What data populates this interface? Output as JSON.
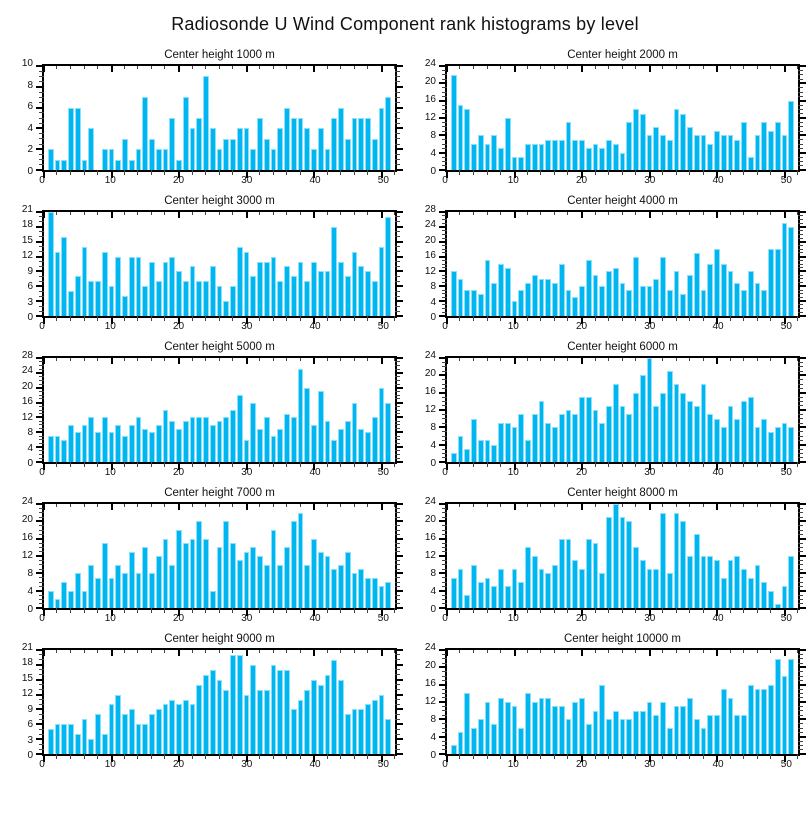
{
  "page": {
    "title": "Radiosonde U Wind Component rank histograms by level"
  },
  "style": {
    "bar_fill": "#00b6f0",
    "bar_edge": "#8ce0fa",
    "axis_color": "#000000"
  },
  "chart_data": [
    {
      "type": "bar",
      "title": "Center height 1000 m",
      "xlabel": "",
      "ylabel": "",
      "xlim": [
        0,
        52
      ],
      "xticks": [
        0,
        10,
        20,
        30,
        40,
        50
      ],
      "x_minor_step": 2,
      "ylim": [
        0,
        10
      ],
      "yticks": [
        0,
        2,
        4,
        6,
        8,
        10
      ],
      "y_minor_step": 0.5,
      "grid": false,
      "legend": "none",
      "values": [
        2,
        1,
        1,
        6,
        6,
        1,
        4,
        0,
        2,
        2,
        1,
        3,
        1,
        2,
        7,
        3,
        2,
        2,
        5,
        1,
        7,
        4,
        5,
        9,
        4,
        2,
        3,
        3,
        4,
        4,
        2,
        5,
        3,
        2,
        4,
        6,
        5,
        5,
        4,
        2,
        4,
        2,
        5,
        6,
        3,
        5,
        5,
        5,
        3,
        6,
        7
      ]
    },
    {
      "type": "bar",
      "title": "Center height 2000 m",
      "xlabel": "",
      "ylabel": "",
      "xlim": [
        0,
        52
      ],
      "xticks": [
        0,
        10,
        20,
        30,
        40,
        50
      ],
      "x_minor_step": 2,
      "ylim": [
        0,
        24
      ],
      "yticks": [
        0,
        4,
        8,
        12,
        16,
        20,
        24
      ],
      "y_minor_step": 1,
      "grid": false,
      "legend": "none",
      "values": [
        22,
        15,
        14,
        6,
        8,
        6,
        8,
        5,
        12,
        3,
        3,
        6,
        6,
        6,
        7,
        7,
        7,
        11,
        7,
        7,
        5,
        6,
        5,
        7,
        6,
        4,
        11,
        14,
        13,
        8,
        10,
        8,
        7,
        14,
        13,
        10,
        8,
        8,
        6,
        9,
        8,
        8,
        7,
        11,
        3,
        8,
        11,
        9,
        11,
        8,
        16
      ]
    },
    {
      "type": "bar",
      "title": "Center height 3000 m",
      "xlabel": "",
      "ylabel": "",
      "xlim": [
        0,
        52
      ],
      "xticks": [
        0,
        10,
        20,
        30,
        40,
        50
      ],
      "x_minor_step": 2,
      "ylim": [
        0,
        21
      ],
      "yticks": [
        0,
        3,
        6,
        9,
        12,
        15,
        18,
        21
      ],
      "y_minor_step": 1,
      "grid": false,
      "legend": "none",
      "values": [
        21,
        13,
        16,
        5,
        8,
        14,
        7,
        7,
        13,
        6,
        12,
        4,
        12,
        12,
        6,
        11,
        7,
        11,
        12,
        9,
        7,
        10,
        7,
        7,
        10,
        6,
        3,
        6,
        14,
        13,
        8,
        11,
        11,
        12,
        7,
        10,
        8,
        11,
        7,
        11,
        9,
        9,
        18,
        11,
        8,
        13,
        10,
        9,
        7,
        14,
        20
      ]
    },
    {
      "type": "bar",
      "title": "Center height 4000 m",
      "xlabel": "",
      "ylabel": "",
      "xlim": [
        0,
        52
      ],
      "xticks": [
        0,
        10,
        20,
        30,
        40,
        50
      ],
      "x_minor_step": 2,
      "ylim": [
        0,
        28
      ],
      "yticks": [
        0,
        4,
        8,
        12,
        16,
        20,
        24,
        28
      ],
      "y_minor_step": 1,
      "grid": false,
      "legend": "none",
      "values": [
        12,
        10,
        7,
        7,
        6,
        15,
        9,
        14,
        13,
        4,
        7,
        9,
        11,
        10,
        10,
        9,
        14,
        7,
        5,
        8,
        15,
        11,
        8,
        12,
        13,
        9,
        7,
        16,
        8,
        8,
        10,
        16,
        7,
        12,
        6,
        11,
        17,
        7,
        14,
        18,
        14,
        12,
        9,
        7,
        12,
        9,
        7,
        18,
        18,
        25,
        24
      ]
    },
    {
      "type": "bar",
      "title": "Center height 5000 m",
      "xlabel": "",
      "ylabel": "",
      "xlim": [
        0,
        52
      ],
      "xticks": [
        0,
        10,
        20,
        30,
        40,
        50
      ],
      "x_minor_step": 2,
      "ylim": [
        0,
        28
      ],
      "yticks": [
        0,
        4,
        8,
        12,
        16,
        20,
        24,
        28
      ],
      "y_minor_step": 1,
      "grid": false,
      "legend": "none",
      "values": [
        7,
        7,
        6,
        10,
        8,
        10,
        12,
        8,
        12,
        8,
        10,
        7,
        10,
        12,
        9,
        8,
        10,
        14,
        11,
        9,
        11,
        12,
        12,
        12,
        10,
        11,
        12,
        14,
        18,
        6,
        16,
        9,
        12,
        7,
        9,
        13,
        12,
        25,
        20,
        10,
        19,
        11,
        6,
        9,
        11,
        16,
        9,
        8,
        12,
        20,
        16
      ]
    },
    {
      "type": "bar",
      "title": "Center height 6000 m",
      "xlabel": "",
      "ylabel": "",
      "xlim": [
        0,
        52
      ],
      "xticks": [
        0,
        10,
        20,
        30,
        40,
        50
      ],
      "x_minor_step": 2,
      "ylim": [
        0,
        24
      ],
      "yticks": [
        0,
        4,
        8,
        12,
        16,
        20,
        24
      ],
      "y_minor_step": 1,
      "grid": false,
      "legend": "none",
      "values": [
        2,
        6,
        3,
        10,
        5,
        5,
        4,
        9,
        9,
        8,
        11,
        5,
        11,
        14,
        9,
        8,
        11,
        12,
        11,
        15,
        15,
        12,
        9,
        13,
        18,
        13,
        11,
        16,
        20,
        24,
        13,
        16,
        21,
        18,
        16,
        14,
        13,
        18,
        11,
        10,
        8,
        13,
        10,
        14,
        15,
        8,
        10,
        7,
        8,
        9,
        8
      ]
    },
    {
      "type": "bar",
      "title": "Center height 7000 m",
      "xlabel": "",
      "ylabel": "",
      "xlim": [
        0,
        52
      ],
      "xticks": [
        0,
        10,
        20,
        30,
        40,
        50
      ],
      "x_minor_step": 2,
      "ylim": [
        0,
        24
      ],
      "yticks": [
        0,
        4,
        8,
        12,
        16,
        20,
        24
      ],
      "y_minor_step": 1,
      "grid": false,
      "legend": "none",
      "values": [
        4,
        2,
        6,
        4,
        8,
        4,
        10,
        7,
        15,
        7,
        10,
        8,
        13,
        8,
        14,
        8,
        12,
        16,
        10,
        18,
        15,
        16,
        20,
        16,
        4,
        14,
        20,
        15,
        11,
        13,
        14,
        12,
        10,
        18,
        10,
        14,
        20,
        22,
        10,
        16,
        13,
        12,
        9,
        10,
        13,
        8,
        9,
        7,
        7,
        5,
        6
      ]
    },
    {
      "type": "bar",
      "title": "Center height 8000 m",
      "xlabel": "",
      "ylabel": "",
      "xlim": [
        0,
        52
      ],
      "xticks": [
        0,
        10,
        20,
        30,
        40,
        50
      ],
      "x_minor_step": 2,
      "ylim": [
        0,
        24
      ],
      "yticks": [
        0,
        4,
        8,
        12,
        16,
        20,
        24
      ],
      "y_minor_step": 1,
      "grid": false,
      "legend": "none",
      "values": [
        7,
        9,
        3,
        10,
        6,
        7,
        5,
        9,
        5,
        9,
        6,
        14,
        12,
        9,
        8,
        10,
        16,
        16,
        11,
        9,
        16,
        15,
        8,
        21,
        24,
        21,
        20,
        14,
        11,
        9,
        9,
        22,
        8,
        22,
        20,
        12,
        17,
        12,
        12,
        11,
        7,
        11,
        12,
        9,
        7,
        10,
        6,
        4,
        1,
        5,
        12
      ]
    },
    {
      "type": "bar",
      "title": "Center height 9000 m",
      "xlabel": "",
      "ylabel": "",
      "xlim": [
        0,
        52
      ],
      "xticks": [
        0,
        10,
        20,
        30,
        40,
        50
      ],
      "x_minor_step": 2,
      "ylim": [
        0,
        21
      ],
      "yticks": [
        0,
        3,
        6,
        9,
        12,
        15,
        18,
        21
      ],
      "y_minor_step": 1,
      "grid": false,
      "legend": "none",
      "values": [
        5,
        6,
        6,
        6,
        4,
        7,
        3,
        8,
        4,
        10,
        12,
        8,
        9,
        6,
        6,
        8,
        9,
        10,
        11,
        10,
        11,
        10,
        14,
        16,
        17,
        15,
        13,
        20,
        20,
        12,
        18,
        13,
        13,
        18,
        17,
        17,
        9,
        11,
        13,
        15,
        14,
        16,
        19,
        15,
        8,
        9,
        9,
        10,
        11,
        12,
        7
      ]
    },
    {
      "type": "bar",
      "title": "Center height 10000 m",
      "xlabel": "",
      "ylabel": "",
      "xlim": [
        0,
        52
      ],
      "xticks": [
        0,
        10,
        20,
        30,
        40,
        50
      ],
      "x_minor_step": 2,
      "ylim": [
        0,
        24
      ],
      "yticks": [
        0,
        4,
        8,
        12,
        16,
        20,
        24
      ],
      "y_minor_step": 1,
      "grid": false,
      "legend": "none",
      "values": [
        2,
        5,
        14,
        6,
        8,
        12,
        7,
        13,
        12,
        11,
        6,
        14,
        12,
        13,
        13,
        11,
        11,
        8,
        12,
        13,
        7,
        10,
        16,
        8,
        10,
        8,
        8,
        10,
        10,
        12,
        9,
        12,
        6,
        11,
        11,
        13,
        8,
        6,
        9,
        9,
        15,
        13,
        9,
        9,
        16,
        15,
        15,
        16,
        22,
        18,
        22
      ]
    }
  ]
}
